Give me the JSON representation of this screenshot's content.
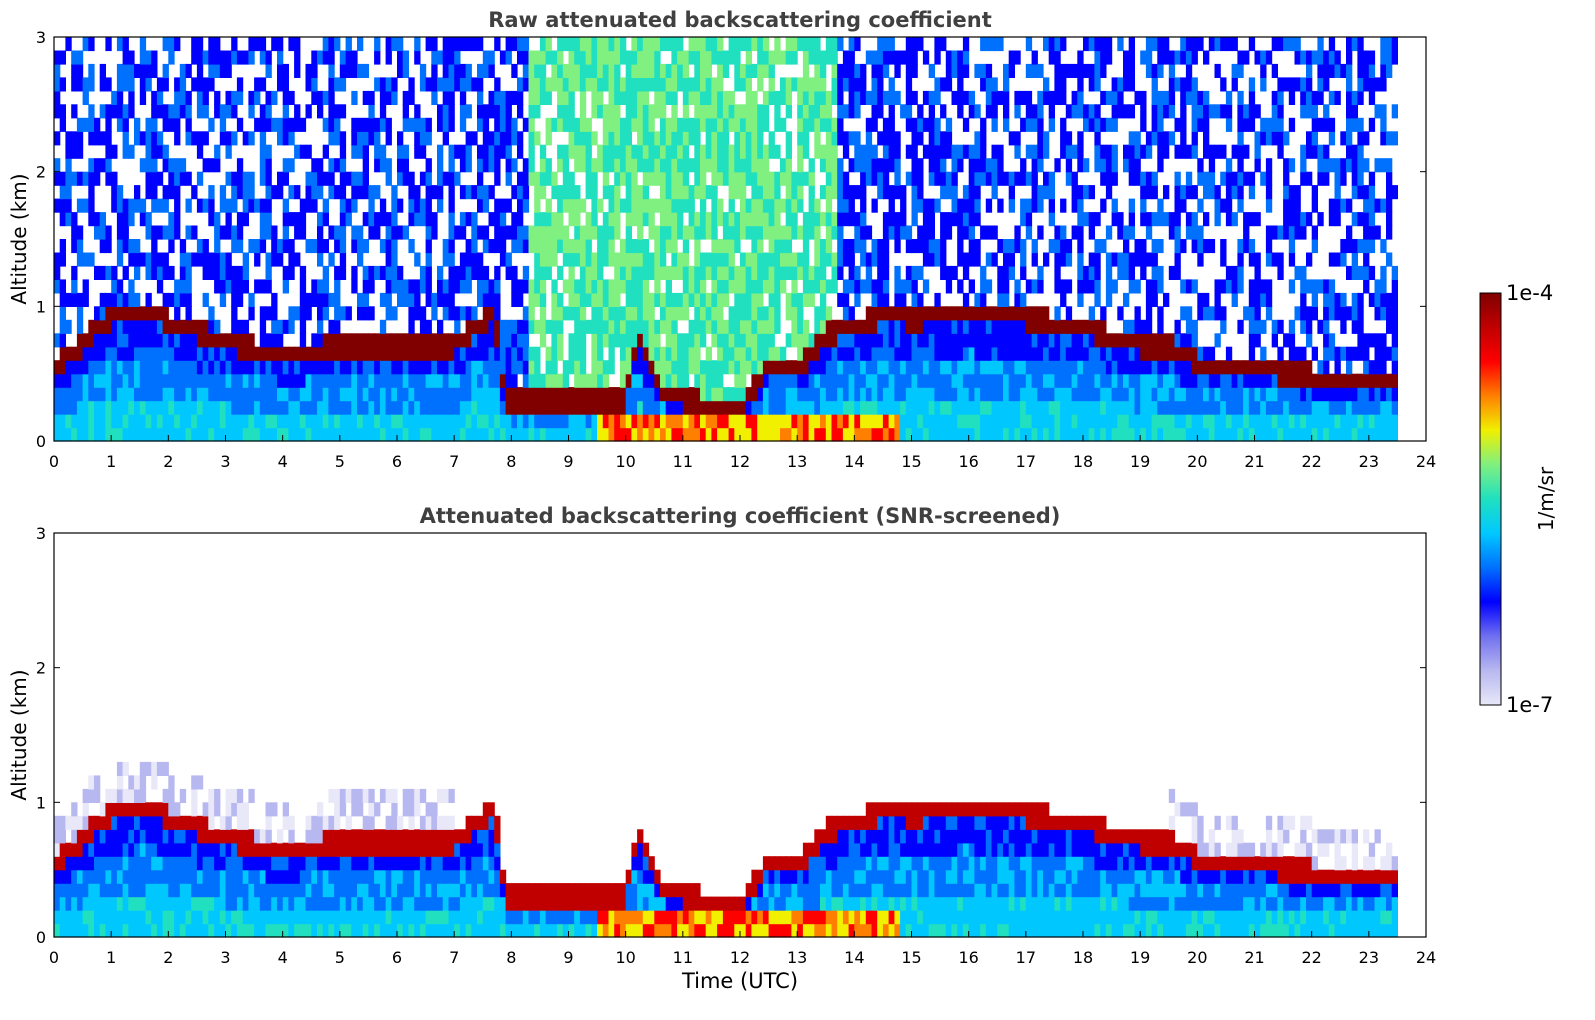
{
  "chart_data": [
    {
      "type": "heatmap",
      "title": "Raw attenuated backscattering coefficient",
      "xlabel": "",
      "ylabel": "Altitude (km)",
      "xlim": [
        0,
        24
      ],
      "ylim": [
        0,
        3
      ],
      "xticks": [
        "0",
        "1",
        "2",
        "3",
        "4",
        "5",
        "6",
        "7",
        "8",
        "9",
        "10",
        "11",
        "12",
        "13",
        "14",
        "15",
        "16",
        "17",
        "18",
        "19",
        "20",
        "21",
        "22",
        "23",
        "24"
      ],
      "yticks": [
        "0",
        "1",
        "2",
        "3"
      ],
      "grid": false,
      "data_end_time": 23.5,
      "layer_height_km": [
        [
          0,
          0.55
        ],
        [
          0.5,
          0.75
        ],
        [
          1,
          0.95
        ],
        [
          1.8,
          1.0
        ],
        [
          2,
          0.9
        ],
        [
          3,
          0.75
        ],
        [
          4,
          0.65
        ],
        [
          5,
          0.72
        ],
        [
          6,
          0.7
        ],
        [
          7,
          0.72
        ],
        [
          7.7,
          0.98
        ],
        [
          7.9,
          0.33
        ],
        [
          9,
          0.3
        ],
        [
          10,
          0.33
        ],
        [
          10.2,
          0.8
        ],
        [
          10.7,
          0.35
        ],
        [
          12,
          0.25
        ],
        [
          12.5,
          0.6
        ],
        [
          13,
          0.55
        ],
        [
          13.5,
          0.8
        ],
        [
          14,
          0.88
        ],
        [
          14.6,
          0.95
        ],
        [
          15,
          0.92
        ],
        [
          16,
          0.98
        ],
        [
          17,
          0.93
        ],
        [
          18,
          0.85
        ],
        [
          19,
          0.73
        ],
        [
          19.5,
          0.72
        ],
        [
          20,
          0.6
        ],
        [
          21,
          0.55
        ],
        [
          22,
          0.5
        ],
        [
          23.5,
          0.45
        ]
      ]
    },
    {
      "type": "heatmap",
      "title": "Attenuated backscattering coefficient (SNR-screened)",
      "xlabel": "Time (UTC)",
      "ylabel": "Altitude (km)",
      "xlim": [
        0,
        24
      ],
      "ylim": [
        0,
        3
      ],
      "xticks": [
        "0",
        "1",
        "2",
        "3",
        "4",
        "5",
        "6",
        "7",
        "8",
        "9",
        "10",
        "11",
        "12",
        "13",
        "14",
        "15",
        "16",
        "17",
        "18",
        "19",
        "20",
        "21",
        "22",
        "23",
        "24"
      ],
      "yticks": [
        "0",
        "1",
        "2",
        "3"
      ],
      "grid": false,
      "data_end_time": 23.5
    }
  ],
  "colorbar": {
    "label": "1/m/sr",
    "max_label": "1e-4",
    "min_label": "1e-7",
    "scale": "log",
    "range": [
      1e-07,
      0.0001
    ],
    "colormap": [
      "#e8e8f8",
      "#b8b8f0",
      "#7070f0",
      "#0000ff",
      "#0070ff",
      "#00c8ff",
      "#20e0c0",
      "#80f080",
      "#f0f000",
      "#ff8000",
      "#ff0000",
      "#c00000",
      "#800000"
    ]
  }
}
